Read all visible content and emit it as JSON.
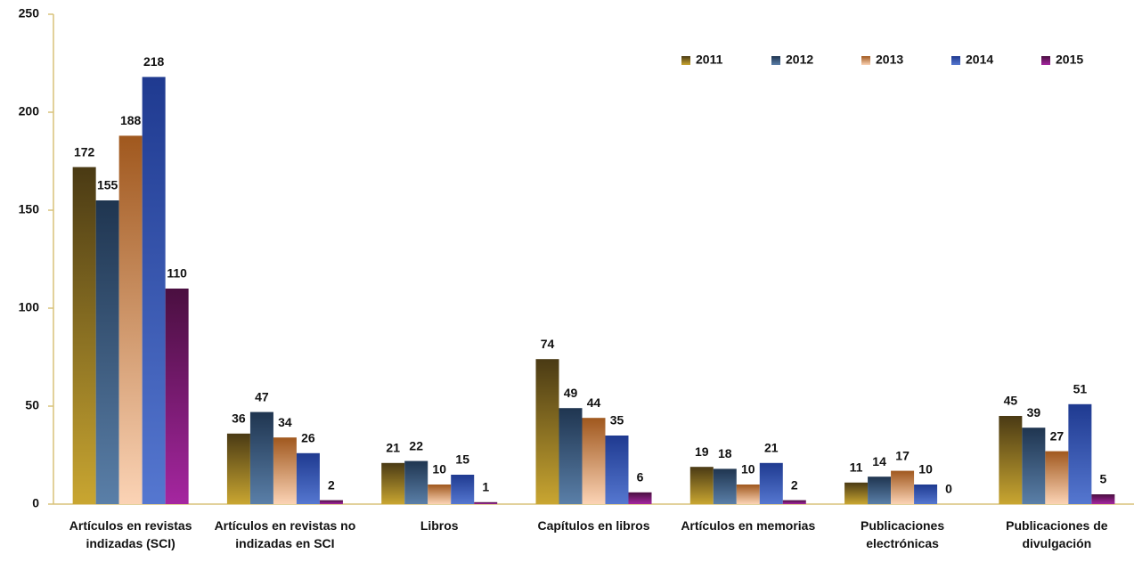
{
  "chart_data": {
    "type": "bar",
    "categories": [
      "Artículos en revistas indizadas (SCI)",
      "Artículos en revistas no indizadas en SCI",
      "Libros",
      "Capítulos en libros",
      "Artículos en memorias",
      "Publicaciones electrónicas",
      "Publicaciones de divulgación"
    ],
    "series": [
      {
        "name": "2011",
        "color": "#4a3a14",
        "values": [
          172,
          36,
          21,
          74,
          19,
          11,
          45
        ]
      },
      {
        "name": "2012",
        "color": "#1f3550",
        "values": [
          155,
          47,
          22,
          49,
          18,
          14,
          39
        ]
      },
      {
        "name": "2013",
        "color": "#a0581e",
        "values": [
          188,
          34,
          10,
          44,
          10,
          17,
          27
        ]
      },
      {
        "name": "2014",
        "color": "#1f3a90",
        "values": [
          218,
          26,
          15,
          35,
          21,
          10,
          51
        ]
      },
      {
        "name": "2015",
        "color": "#4a0f40",
        "values": [
          110,
          2,
          1,
          6,
          2,
          0,
          5
        ]
      }
    ],
    "ylim": [
      0,
      250
    ],
    "yticks": [
      0,
      50,
      100,
      150,
      200,
      250
    ],
    "grid": false,
    "legend": "top-right"
  }
}
